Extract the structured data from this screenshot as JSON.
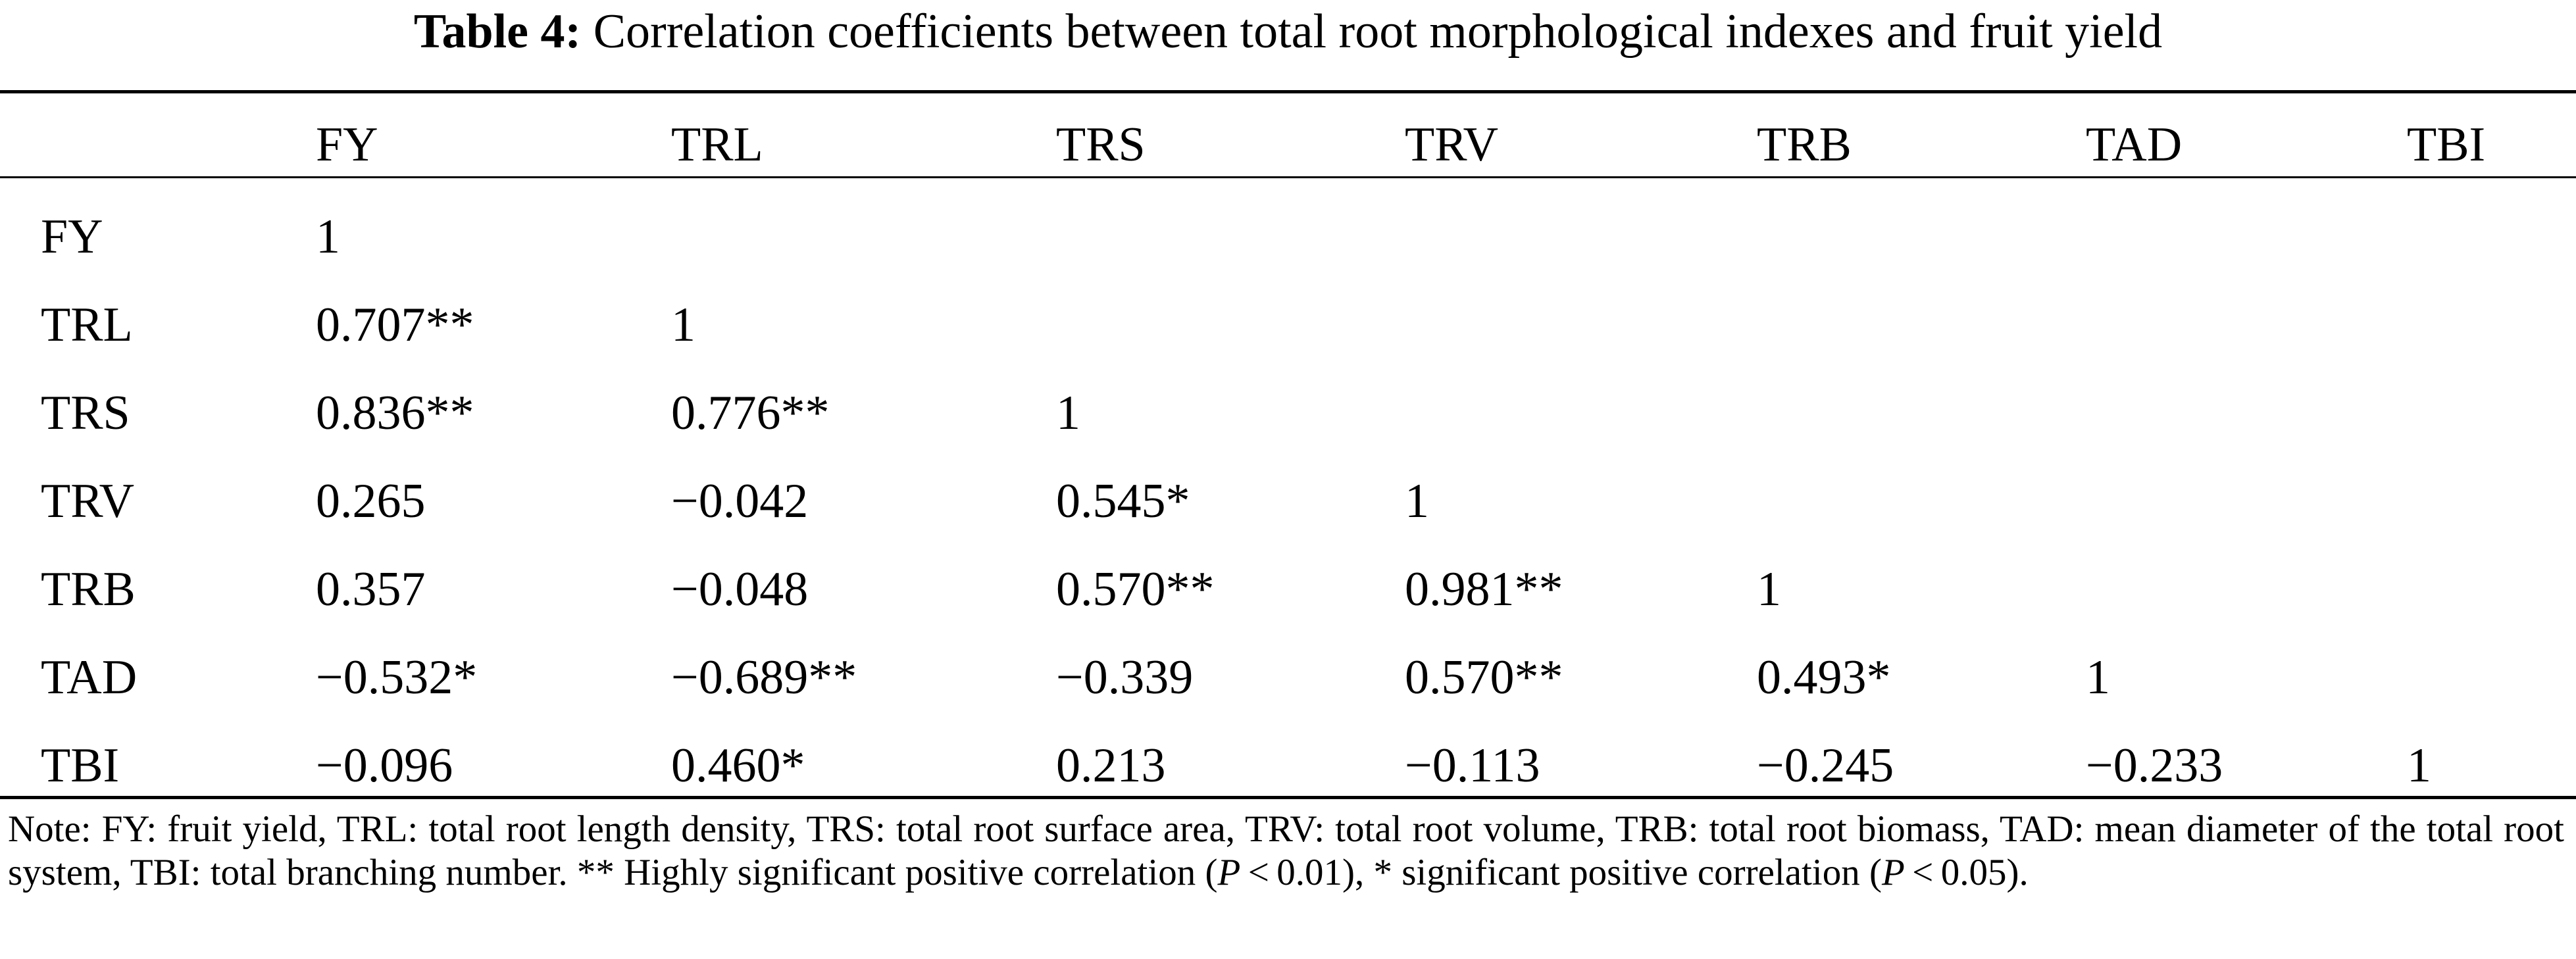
{
  "caption": {
    "label": "Table 4:",
    "title": "Correlation coefficients between total root morphological indexes and fruit yield"
  },
  "table": {
    "headers": [
      "",
      "FY",
      "TRL",
      "TRS",
      "TRV",
      "TRB",
      "TAD",
      "TBI"
    ],
    "rows": [
      [
        "FY",
        "1",
        "",
        "",
        "",
        "",
        "",
        ""
      ],
      [
        "TRL",
        "0.707**",
        "1",
        "",
        "",
        "",
        "",
        ""
      ],
      [
        "TRS",
        "0.836**",
        "0.776**",
        "1",
        "",
        "",
        "",
        ""
      ],
      [
        "TRV",
        "0.265",
        "−0.042",
        "0.545*",
        "1",
        "",
        "",
        ""
      ],
      [
        "TRB",
        "0.357",
        "−0.048",
        "0.570**",
        "0.981**",
        "1",
        "",
        ""
      ],
      [
        "TAD",
        "−0.532*",
        "−0.689**",
        "−0.339",
        "0.570**",
        "0.493*",
        "1",
        ""
      ],
      [
        "TBI",
        "−0.096",
        "0.460*",
        "0.213",
        "−0.113",
        "−0.245",
        "−0.233",
        "1"
      ]
    ]
  },
  "note": {
    "text_1": "Note: FY: fruit yield, TRL: total root length density, TRS: total root surface area, TRV: total root volume, TRB: total root biomass, TAD: mean diameter of the total root system, TBI: total branching number. ** Highly significant positive correlation (",
    "p_symbol_1": "P",
    "text_2": " < 0.01), * significant positive correlation (",
    "p_symbol_2": "P",
    "text_3": " < 0.05)."
  }
}
